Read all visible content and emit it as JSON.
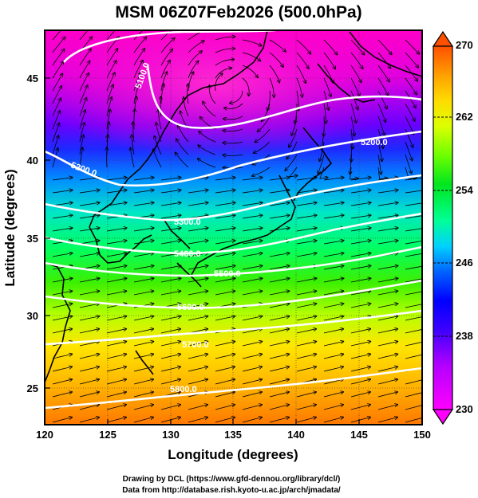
{
  "title": "MSM 06Z07Feb2026 (500.0hPa)",
  "x_axis": {
    "label": "Longitude (degrees)",
    "range": [
      120,
      150
    ],
    "ticks": [
      "120",
      "125",
      "130",
      "135",
      "140",
      "145",
      "150"
    ]
  },
  "y_axis": {
    "label": "Latitude  (degrees)",
    "range": [
      22.5,
      48
    ],
    "ticks": [
      "25",
      "30",
      "35",
      "40",
      "45"
    ]
  },
  "colorbar": {
    "ticks": [
      "270",
      "262",
      "254",
      "246",
      "238",
      "230"
    ],
    "range": [
      230,
      270
    ],
    "colormap": [
      "#ff1493",
      "#ff00ff",
      "#b400ff",
      "#5a00ff",
      "#0000ff",
      "#0064ff",
      "#00d2ff",
      "#00ff96",
      "#00e61e",
      "#6eff00",
      "#dcff00",
      "#ffdc00",
      "#ffa000",
      "#ff6400",
      "#ff2800"
    ]
  },
  "contours": [
    {
      "label": "5100.0",
      "lat": 46.0
    },
    {
      "label": "5200.0",
      "lat": 40.0
    },
    {
      "label": "5300.0",
      "lat": 36.5
    },
    {
      "label": "5400.0",
      "lat": 34.5
    },
    {
      "label": "5500.0",
      "lat": 33.0
    },
    {
      "label": "5600.0",
      "lat": 31.0
    },
    {
      "label": "5700.0",
      "lat": 28.5
    },
    {
      "label": "5800.0",
      "lat": 25.0
    }
  ],
  "credits": {
    "line1": "Drawing by DCL (https://www.gfd-dennou.org/library/dcl/)",
    "line2": "Data from http://database.rish.kyoto-u.ac.jp/arch/jmadata/"
  }
}
